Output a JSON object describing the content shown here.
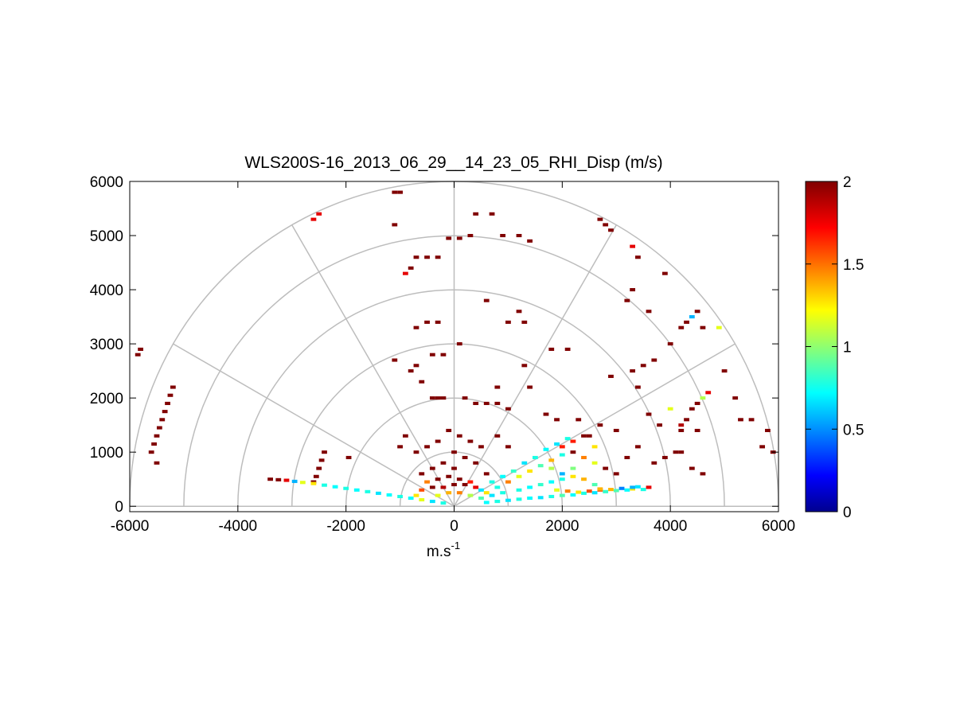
{
  "chart_data": {
    "type": "heatmap",
    "title": "WLS200S-16_2013_06_29__14_23_05_RHI_Disp (m/s)",
    "xlabel": "m.s",
    "xlabel_superscript": "-1",
    "ylabel": "",
    "xlim": [
      -6000,
      6000
    ],
    "ylim": [
      -100,
      6000
    ],
    "xticks": [
      "-6000",
      "-4000",
      "-2000",
      "0",
      "2000",
      "4000",
      "6000"
    ],
    "yticks": [
      "0",
      "1000",
      "2000",
      "3000",
      "4000",
      "5000",
      "6000"
    ],
    "grid": "polar",
    "polar_rings": [
      1000,
      2000,
      3000,
      4000,
      5000,
      6000
    ],
    "polar_spokes_deg": [
      0,
      30,
      60,
      90,
      120,
      150,
      180
    ],
    "colorbar": {
      "min": 0,
      "max": 2,
      "ticks": [
        "0",
        "0.5",
        "1",
        "1.5",
        "2"
      ],
      "colormap": "jet"
    },
    "point_dbox": [
      100,
      60
    ],
    "points": [
      [
        3500,
        310,
        0.8
      ],
      [
        3200,
        300,
        0.75
      ],
      [
        3000,
        290,
        0.9
      ],
      [
        2800,
        270,
        0.85
      ],
      [
        2600,
        250,
        0.7
      ],
      [
        2400,
        240,
        0.8
      ],
      [
        2200,
        210,
        0.75
      ],
      [
        2000,
        200,
        0.9
      ],
      [
        1800,
        180,
        0.8
      ],
      [
        1600,
        160,
        0.7
      ],
      [
        1400,
        150,
        0.75
      ],
      [
        1200,
        130,
        0.8
      ],
      [
        1000,
        110,
        0.7
      ],
      [
        800,
        90,
        0.8
      ],
      [
        600,
        70,
        0.75
      ],
      [
        3600,
        350,
        1.8
      ],
      [
        3300,
        320,
        1.3
      ],
      [
        2900,
        310,
        1.4
      ],
      [
        2700,
        300,
        1.6
      ],
      [
        3100,
        330,
        0.5
      ],
      [
        3000,
        600,
        2.0
      ],
      [
        2800,
        700,
        2.0
      ],
      [
        2600,
        800,
        1.2
      ],
      [
        2400,
        900,
        1.5
      ],
      [
        2200,
        1000,
        2.0
      ],
      [
        2000,
        1100,
        1.7
      ],
      [
        2500,
        1300,
        2.0
      ],
      [
        2700,
        1500,
        2.0
      ],
      [
        3000,
        1400,
        2.0
      ],
      [
        2300,
        1600,
        2.0
      ],
      [
        2100,
        1250,
        0.8
      ],
      [
        1900,
        1150,
        0.7
      ],
      [
        1700,
        1050,
        0.75
      ],
      [
        1500,
        900,
        0.8
      ],
      [
        1300,
        800,
        0.7
      ],
      [
        1100,
        650,
        0.85
      ],
      [
        900,
        550,
        0.75
      ],
      [
        700,
        450,
        0.8
      ],
      [
        500,
        300,
        0.7
      ],
      [
        2600,
        1100,
        1.3
      ],
      [
        2200,
        700,
        1.0
      ],
      [
        2000,
        600,
        0.6
      ],
      [
        1800,
        700,
        1.1
      ],
      [
        2400,
        500,
        1.4
      ],
      [
        2600,
        400,
        0.9
      ],
      [
        3200,
        900,
        2.0
      ],
      [
        3400,
        1100,
        2.0
      ],
      [
        3700,
        800,
        2.0
      ],
      [
        3900,
        900,
        2.0
      ],
      [
        4100,
        1000,
        2.0
      ],
      [
        3800,
        1500,
        2.0
      ],
      [
        4200,
        1400,
        2.0
      ],
      [
        3600,
        1700,
        2.0
      ],
      [
        4400,
        1800,
        2.0
      ],
      [
        4500,
        1900,
        2.0
      ],
      [
        4600,
        2000,
        1.1
      ],
      [
        4700,
        2100,
        1.8
      ],
      [
        4300,
        1600,
        2.0
      ],
      [
        4000,
        1800,
        1.2
      ],
      [
        3400,
        2200,
        2.0
      ],
      [
        3300,
        2500,
        2.0
      ],
      [
        2900,
        2400,
        2.0
      ],
      [
        3500,
        2600,
        2.0
      ],
      [
        3700,
        2700,
        2.0
      ],
      [
        4000,
        3000,
        2.0
      ],
      [
        4200,
        3300,
        2.0
      ],
      [
        4300,
        3400,
        2.0
      ],
      [
        4400,
        3500,
        0.6
      ],
      [
        4500,
        3600,
        2.0
      ],
      [
        4600,
        3300,
        2.0
      ],
      [
        4900,
        3300,
        1.2
      ],
      [
        5000,
        2500,
        2.0
      ],
      [
        5200,
        2000,
        2.0
      ],
      [
        5300,
        1600,
        2.0
      ],
      [
        5500,
        1600,
        2.0
      ],
      [
        5800,
        1400,
        2.0
      ],
      [
        5700,
        1100,
        2.0
      ],
      [
        5900,
        1000,
        2.0
      ],
      [
        4200,
        1000,
        2.0
      ],
      [
        4400,
        700,
        2.0
      ],
      [
        4600,
        600,
        2.0
      ],
      [
        4200,
        1500,
        1.9
      ],
      [
        4500,
        1400,
        2.0
      ],
      [
        3300,
        4000,
        2.0
      ],
      [
        3600,
        3600,
        2.0
      ],
      [
        3200,
        3800,
        2.0
      ],
      [
        3400,
        4600,
        2.0
      ],
      [
        2700,
        5300,
        2.0
      ],
      [
        2800,
        5200,
        2.0
      ],
      [
        2900,
        5100,
        2.0
      ],
      [
        3300,
        4800,
        1.8
      ],
      [
        3900,
        4300,
        2.0
      ],
      [
        1200,
        5000,
        2.0
      ],
      [
        900,
        5000,
        2.0
      ],
      [
        1400,
        4900,
        2.0
      ],
      [
        400,
        5400,
        2.0
      ],
      [
        700,
        5400,
        2.0
      ],
      [
        300,
        5000,
        2.0
      ],
      [
        100,
        4950,
        2.0
      ],
      [
        -100,
        4950,
        2.0
      ],
      [
        -300,
        4600,
        2.0
      ],
      [
        -500,
        4600,
        2.0
      ],
      [
        -700,
        4600,
        2.0
      ],
      [
        -800,
        4400,
        2.0
      ],
      [
        -900,
        4300,
        1.8
      ],
      [
        -300,
        3400,
        2.0
      ],
      [
        -500,
        3400,
        2.0
      ],
      [
        -700,
        3300,
        2.0
      ],
      [
        -200,
        2800,
        2.0
      ],
      [
        -400,
        2800,
        2.0
      ],
      [
        100,
        3000,
        2.0
      ],
      [
        -1100,
        2700,
        2.0
      ],
      [
        -700,
        2600,
        2.0
      ],
      [
        -800,
        2500,
        2.0
      ],
      [
        -600,
        2300,
        2.0
      ],
      [
        -400,
        2000,
        2.0
      ],
      [
        -300,
        2000,
        2.0
      ],
      [
        -200,
        2000,
        2.0
      ],
      [
        200,
        2000,
        2.0
      ],
      [
        400,
        1900,
        2.0
      ],
      [
        600,
        1900,
        2.0
      ],
      [
        800,
        1900,
        2.0
      ],
      [
        800,
        2200,
        2.0
      ],
      [
        1300,
        2600,
        2.0
      ],
      [
        1400,
        2200,
        2.0
      ],
      [
        1700,
        1700,
        2.0
      ],
      [
        1900,
        1600,
        2.0
      ],
      [
        1000,
        1800,
        2.0
      ],
      [
        1200,
        3600,
        2.0
      ],
      [
        1300,
        3400,
        2.0
      ],
      [
        1000,
        3400,
        2.0
      ],
      [
        600,
        3800,
        2.0
      ],
      [
        1800,
        2900,
        2.0
      ],
      [
        2100,
        2900,
        2.0
      ],
      [
        -1100,
        5200,
        2.0
      ],
      [
        -1000,
        5800,
        2.0
      ],
      [
        -1100,
        5800,
        2.0
      ],
      [
        -2600,
        5300,
        1.8
      ],
      [
        -2500,
        5400,
        1.8
      ],
      [
        -5200,
        2200,
        2.0
      ],
      [
        -5250,
        2050,
        2.0
      ],
      [
        -5300,
        1900,
        2.0
      ],
      [
        -5350,
        1750,
        2.0
      ],
      [
        -5400,
        1600,
        2.0
      ],
      [
        -5450,
        1450,
        2.0
      ],
      [
        -5500,
        1300,
        2.0
      ],
      [
        -5550,
        1150,
        2.0
      ],
      [
        -5600,
        1000,
        2.0
      ],
      [
        -5500,
        800,
        2.0
      ],
      [
        -5800,
        2900,
        2.0
      ],
      [
        -5850,
        2800,
        2.0
      ],
      [
        -2400,
        1000,
        2.0
      ],
      [
        -2450,
        850,
        2.0
      ],
      [
        -2500,
        700,
        2.0
      ],
      [
        -2550,
        550,
        2.0
      ],
      [
        -2600,
        450,
        2.0
      ],
      [
        -1950,
        900,
        2.0
      ],
      [
        -3400,
        500,
        2.0
      ],
      [
        -3250,
        490,
        2.0
      ],
      [
        -3100,
        480,
        1.8
      ],
      [
        -2950,
        460,
        0.6
      ],
      [
        -2800,
        440,
        1.2
      ],
      [
        -2600,
        420,
        1.3
      ],
      [
        -2400,
        390,
        0.8
      ],
      [
        -2200,
        360,
        0.75
      ],
      [
        -2000,
        330,
        0.8
      ],
      [
        -1800,
        300,
        0.75
      ],
      [
        -1600,
        270,
        0.8
      ],
      [
        -1400,
        240,
        0.7
      ],
      [
        -1200,
        210,
        0.75
      ],
      [
        -1000,
        180,
        0.8
      ],
      [
        -800,
        150,
        0.75
      ],
      [
        -600,
        120,
        1.2
      ],
      [
        -400,
        90,
        0.7
      ],
      [
        -200,
        60,
        0.8
      ],
      [
        -700,
        200,
        1.3
      ],
      [
        -600,
        300,
        1.6
      ],
      [
        -400,
        350,
        2.0
      ],
      [
        -200,
        350,
        1.9
      ],
      [
        0,
        400,
        2.0
      ],
      [
        200,
        400,
        2.0
      ],
      [
        400,
        350,
        1.8
      ],
      [
        -300,
        200,
        1.2
      ],
      [
        -100,
        250,
        1.4
      ],
      [
        100,
        250,
        1.5
      ],
      [
        300,
        200,
        1.1
      ],
      [
        500,
        150,
        0.9
      ],
      [
        600,
        250,
        1.3
      ],
      [
        800,
        350,
        0.8
      ],
      [
        1000,
        450,
        1.5
      ],
      [
        1200,
        550,
        1.2
      ],
      [
        1400,
        650,
        1.3
      ],
      [
        1600,
        750,
        0.9
      ],
      [
        1800,
        850,
        1.4
      ],
      [
        2000,
        950,
        0.8
      ],
      [
        2200,
        1200,
        1.7
      ],
      [
        2400,
        1300,
        2.0
      ],
      [
        1600,
        400,
        0.85
      ],
      [
        1800,
        450,
        0.75
      ],
      [
        2000,
        500,
        0.8
      ],
      [
        2200,
        550,
        1.3
      ],
      [
        1200,
        300,
        0.8
      ],
      [
        1400,
        350,
        0.75
      ],
      [
        900,
        250,
        0.8
      ],
      [
        700,
        200,
        0.7
      ],
      [
        3300,
        350,
        0.6
      ],
      [
        3400,
        360,
        0.7
      ],
      [
        1900,
        300,
        1.2
      ],
      [
        2100,
        280,
        1.5
      ],
      [
        2300,
        260,
        1.3
      ],
      [
        2500,
        280,
        1.6
      ],
      [
        2700,
        320,
        1.4
      ],
      [
        -500,
        450,
        1.5
      ],
      [
        -300,
        500,
        2.0
      ],
      [
        100,
        500,
        2.0
      ],
      [
        300,
        450,
        1.7
      ],
      [
        -100,
        550,
        2.0
      ],
      [
        -100,
        1400,
        2.0
      ],
      [
        100,
        1300,
        2.0
      ],
      [
        300,
        1200,
        2.0
      ],
      [
        500,
        1100,
        2.0
      ],
      [
        -300,
        1200,
        2.0
      ],
      [
        -500,
        1100,
        2.0
      ],
      [
        -700,
        1000,
        2.0
      ],
      [
        0,
        1000,
        2.0
      ],
      [
        200,
        900,
        2.0
      ],
      [
        400,
        800,
        2.0
      ],
      [
        -200,
        800,
        2.0
      ],
      [
        -400,
        700,
        2.0
      ],
      [
        0,
        700,
        2.0
      ],
      [
        600,
        600,
        2.0
      ],
      [
        -600,
        600,
        2.0
      ],
      [
        800,
        1300,
        2.0
      ],
      [
        -900,
        1300,
        2.0
      ],
      [
        1000,
        1100,
        2.0
      ],
      [
        -1000,
        1100,
        2.0
      ]
    ]
  }
}
